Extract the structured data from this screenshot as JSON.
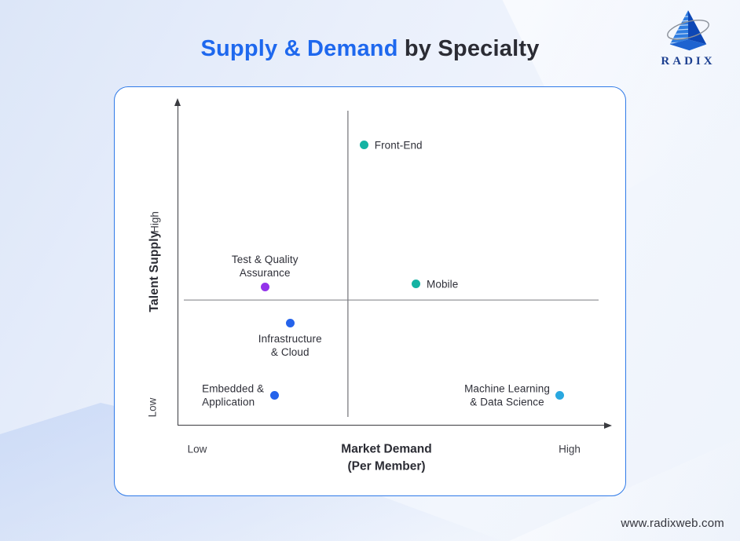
{
  "header": {
    "title_accent": "Supply & Demand",
    "title_rest": " by Specialty",
    "accent_color": "#1e68ee",
    "text_color": "#2b2c34"
  },
  "logo": {
    "brand": "RADIX",
    "pyramid_color": "#1e63d0"
  },
  "footer": {
    "url": "www.radixweb.com"
  },
  "chart_data": {
    "type": "scatter",
    "title": "Supply & Demand by Specialty",
    "xlabel": "Market Demand\n(Per Member)",
    "ylabel": "Talent Supply",
    "x_tick_low": "Low",
    "x_tick_high": "High",
    "y_tick_low": "Low",
    "y_tick_high": "High",
    "xlim": [
      0,
      100
    ],
    "ylim": [
      0,
      100
    ],
    "grid": false,
    "legend": false,
    "quadrant_lines": {
      "x": 39.8,
      "y": 39.1
    },
    "points": [
      {
        "label": "Front-End",
        "x": 43.6,
        "y": 87.5,
        "color": "#14b3a3",
        "label_position": "right",
        "align": "left"
      },
      {
        "label": "Test & Quality\nAssurance",
        "x": 20.3,
        "y": 43.2,
        "color": "#9333ea",
        "label_position": "above",
        "align": "center"
      },
      {
        "label": "Mobile",
        "x": 55.8,
        "y": 44.0,
        "color": "#14b3a3",
        "label_position": "right",
        "align": "left"
      },
      {
        "label": "Infrastructure\n& Cloud",
        "x": 26.2,
        "y": 31.7,
        "color": "#2563eb",
        "label_position": "below",
        "align": "center"
      },
      {
        "label": "Embedded &\nApplication",
        "x": 22.5,
        "y": 9.1,
        "color": "#2563eb",
        "label_position": "left",
        "align": "left"
      },
      {
        "label": "Machine Learning\n& Data Science",
        "x": 89.5,
        "y": 9.1,
        "color": "#29a8e0",
        "label_position": "left",
        "align": "center"
      }
    ]
  }
}
